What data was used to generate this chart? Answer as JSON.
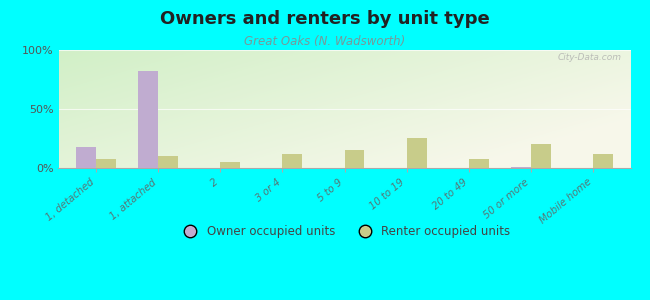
{
  "title": "Owners and renters by unit type",
  "subtitle": "Great Oaks (N. Wadsworth)",
  "categories": [
    "1, detached",
    "1, attached",
    "2",
    "3 or 4",
    "5 to 9",
    "10 to 19",
    "20 to 49",
    "50 or more",
    "Mobile home"
  ],
  "owner_values": [
    18,
    82,
    0,
    0,
    0,
    0,
    0,
    1,
    0
  ],
  "renter_values": [
    8,
    10,
    5,
    12,
    15,
    25,
    8,
    20,
    12
  ],
  "owner_color": "#c0acd0",
  "renter_color": "#c8cc8a",
  "background": "#00ffff",
  "ylabel_ticks": [
    "0%",
    "50%",
    "100%"
  ],
  "ylabel_values": [
    0,
    50,
    100
  ],
  "ylim": [
    0,
    100
  ],
  "bar_width": 0.32,
  "legend_owner": "Owner occupied units",
  "legend_renter": "Renter occupied units",
  "title_fontsize": 13,
  "subtitle_fontsize": 8.5,
  "watermark": "City-Data.com"
}
